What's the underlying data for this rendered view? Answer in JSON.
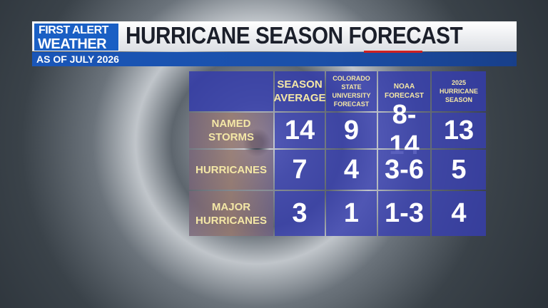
{
  "header": {
    "logo_line1": "FIRST ALERT",
    "logo_line2": "WEATHER",
    "title": "HURRICANE SEASON FORECAST",
    "subtitle": "AS OF JULY 2026"
  },
  "table": {
    "columns": [
      "SEASON AVERAGE",
      "COLORADO STATE UNIVERSITY FORECAST",
      "NOAA FORECAST",
      "2025 HURRICANE SEASON"
    ],
    "rows": [
      [
        "NAMED STORMS",
        "14",
        "9",
        "8-14",
        "13"
      ],
      [
        "HURRICANES",
        "7",
        "4",
        "3-6",
        "5"
      ],
      [
        "MAJOR HURRICANES",
        "3",
        "1",
        "1-3",
        "4"
      ]
    ]
  }
}
